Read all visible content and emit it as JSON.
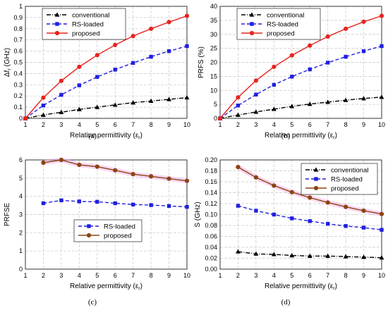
{
  "chart_data": [
    {
      "panel_label": "(a)",
      "type": "line",
      "ylabel_main": "Δf",
      "ylabel_sub": "r",
      "ylabel_rest": " (GHz)",
      "xlabel": "Relative permittivity (ε",
      "xlabel_sub": "r",
      "xlabel_end": ")",
      "x": [
        1,
        2,
        3,
        4,
        5,
        6,
        7,
        8,
        9,
        10
      ],
      "xlim": [
        1,
        10
      ],
      "ylim": [
        0,
        1
      ],
      "yticks": [
        "0",
        "0.1",
        "0.2",
        "0.3",
        "0.4",
        "0.5",
        "0.6",
        "0.7",
        "0.8",
        "0.9",
        "1"
      ],
      "xticks": [
        "1",
        "2",
        "3",
        "4",
        "5",
        "6",
        "7",
        "8",
        "9",
        "10"
      ],
      "grid": true,
      "legend_position": "top-left",
      "series": [
        {
          "name": "conventional",
          "color": "#000000",
          "marker": "triangle",
          "dash": "dashdot",
          "values": [
            0,
            0.03,
            0.055,
            0.08,
            0.1,
            0.12,
            0.14,
            0.155,
            0.17,
            0.185
          ]
        },
        {
          "name": "RS-loaded",
          "color": "#1f1fe0",
          "marker": "square",
          "dash": "dash",
          "values": [
            0,
            0.115,
            0.21,
            0.295,
            0.37,
            0.435,
            0.495,
            0.55,
            0.6,
            0.645
          ]
        },
        {
          "name": "proposed",
          "color": "#e8231f",
          "marker": "circle",
          "dash": "solid",
          "values": [
            0,
            0.185,
            0.335,
            0.46,
            0.565,
            0.655,
            0.735,
            0.8,
            0.86,
            0.915
          ]
        }
      ]
    },
    {
      "panel_label": "(b)",
      "type": "line",
      "ylabel_main": "PRFS (%)",
      "ylabel_sub": "",
      "ylabel_rest": "",
      "xlabel": "Relative permittivity (ε",
      "xlabel_sub": "r",
      "xlabel_end": ")",
      "x": [
        1,
        2,
        3,
        4,
        5,
        6,
        7,
        8,
        9,
        10
      ],
      "xlim": [
        1,
        10
      ],
      "ylim": [
        0,
        40
      ],
      "yticks": [
        "0",
        "5",
        "10",
        "15",
        "20",
        "25",
        "30",
        "35",
        "40"
      ],
      "xticks": [
        "1",
        "2",
        "3",
        "4",
        "5",
        "6",
        "7",
        "8",
        "9",
        "10"
      ],
      "grid": true,
      "legend_position": "top-left",
      "series": [
        {
          "name": "conventional",
          "color": "#000000",
          "marker": "triangle",
          "dash": "dashdot",
          "values": [
            0,
            1.2,
            2.3,
            3.3,
            4.3,
            5.1,
            5.8,
            6.5,
            7.1,
            7.6
          ]
        },
        {
          "name": "RS-loaded",
          "color": "#1f1fe0",
          "marker": "square",
          "dash": "dash",
          "values": [
            0,
            4.6,
            8.5,
            12,
            14.9,
            17.5,
            19.9,
            22,
            24,
            25.8
          ]
        },
        {
          "name": "proposed",
          "color": "#e8231f",
          "marker": "circle",
          "dash": "solid",
          "values": [
            0,
            7.5,
            13.5,
            18.4,
            22.5,
            26,
            29.2,
            32,
            34.5,
            36.6
          ]
        }
      ]
    },
    {
      "panel_label": "(c)",
      "type": "line",
      "ylabel_main": "PRFSE",
      "ylabel_sub": "",
      "ylabel_rest": "",
      "xlabel": "Relative permittivity (ε",
      "xlabel_sub": "r",
      "xlabel_end": ")",
      "x": [
        2,
        3,
        4,
        5,
        6,
        7,
        8,
        9,
        10
      ],
      "xlim": [
        1,
        10
      ],
      "ylim": [
        0,
        6
      ],
      "yticks": [
        "0",
        "1",
        "2",
        "3",
        "4",
        "5",
        "6"
      ],
      "xticks": [
        "1",
        "2",
        "3",
        "4",
        "5",
        "6",
        "7",
        "8",
        "9",
        "10"
      ],
      "grid": true,
      "legend_position": "center",
      "series": [
        {
          "name": "RS-loaded",
          "color": "#1f1fe0",
          "marker": "square",
          "dash": "dash",
          "values": [
            3.62,
            3.78,
            3.72,
            3.7,
            3.62,
            3.55,
            3.52,
            3.47,
            3.42
          ]
        },
        {
          "name": "proposed",
          "color": "#8b4513",
          "marker": "circle",
          "dash": "solid",
          "band": true,
          "values": [
            5.85,
            6.0,
            5.73,
            5.63,
            5.43,
            5.22,
            5.1,
            4.97,
            4.85
          ]
        }
      ]
    },
    {
      "panel_label": "(d)",
      "type": "line",
      "ylabel_main": "S (GHz)",
      "ylabel_sub": "",
      "ylabel_rest": "",
      "xlabel": "Relative permittivity (ε",
      "xlabel_sub": "r",
      "xlabel_end": ")",
      "x": [
        2,
        3,
        4,
        5,
        6,
        7,
        8,
        9,
        10
      ],
      "xlim": [
        1,
        10
      ],
      "ylim": [
        0,
        0.2
      ],
      "yticks": [
        "0.00",
        "0.02",
        "0.04",
        "0.06",
        "0.08",
        "0.10",
        "0.12",
        "0.14",
        "0.16",
        "0.18",
        "0.20"
      ],
      "xticks": [
        "1",
        "2",
        "3",
        "4",
        "5",
        "6",
        "7",
        "8",
        "9",
        "10"
      ],
      "grid": true,
      "legend_position": "top-right",
      "series": [
        {
          "name": "conventional",
          "color": "#000000",
          "marker": "triangle",
          "dash": "dashdot",
          "values": [
            0.032,
            0.028,
            0.027,
            0.025,
            0.024,
            0.024,
            0.023,
            0.022,
            0.021
          ]
        },
        {
          "name": "RS-loaded",
          "color": "#1f1fe0",
          "marker": "square",
          "dash": "dash",
          "values": [
            0.116,
            0.107,
            0.1,
            0.093,
            0.088,
            0.083,
            0.079,
            0.076,
            0.072
          ]
        },
        {
          "name": "proposed",
          "color": "#8b4513",
          "marker": "circle",
          "dash": "solid",
          "band": true,
          "values": [
            0.187,
            0.168,
            0.153,
            0.141,
            0.131,
            0.122,
            0.114,
            0.107,
            0.101
          ]
        }
      ]
    }
  ]
}
